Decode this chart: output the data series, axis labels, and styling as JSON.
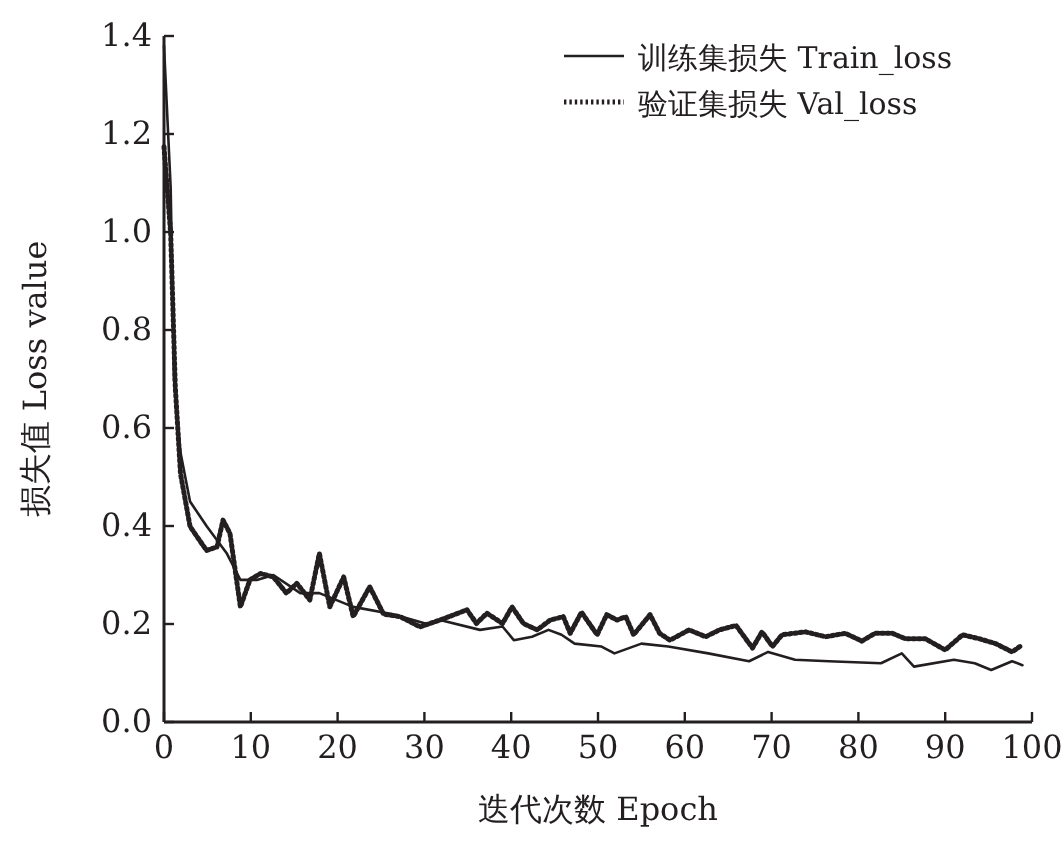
{
  "chart_data": {
    "type": "line",
    "xlabel": "迭代次数 Epoch",
    "ylabel": "损失值 Loss value",
    "xlim": [
      0,
      100
    ],
    "xticks": [
      0,
      10,
      20,
      30,
      40,
      50,
      60,
      70,
      80,
      90,
      100
    ],
    "ylim": [
      0,
      1.4
    ],
    "yticks": [
      {
        "value": 0,
        "label": "0.0"
      },
      0.2,
      0.4,
      0.6,
      0.8,
      {
        "value": 1,
        "label": "1.0"
      },
      1.2,
      1.4
    ],
    "grid": false,
    "legend": "top right",
    "marker": "none",
    "series": [
      {
        "name": "训练集损失 Train_loss",
        "color": "#231f20",
        "line_style": "solid",
        "x": [
          0,
          0.77,
          1.15,
          1.9,
          3,
          4.9,
          7.2,
          8.8,
          10.7,
          12.6,
          15.7,
          17.9,
          21.8,
          26.4,
          30.3,
          31.8,
          36.4,
          39,
          40.3,
          42.4,
          44.3,
          45.8,
          47.3,
          50.4,
          51.9,
          55,
          58.1,
          62.7,
          67.4,
          69.6,
          72.7,
          76.6,
          82.6,
          85,
          86.4,
          91,
          93.4,
          95.3,
          97.7,
          98.9
        ],
        "values": [
          1.38,
          1.09,
          0.7,
          0.55,
          0.45,
          0.4,
          0.345,
          0.29,
          0.29,
          0.3,
          0.263,
          0.263,
          0.235,
          0.22,
          0.2,
          0.208,
          0.188,
          0.195,
          0.167,
          0.174,
          0.188,
          0.178,
          0.16,
          0.154,
          0.14,
          0.16,
          0.154,
          0.14,
          0.124,
          0.143,
          0.127,
          0.124,
          0.12,
          0.14,
          0.113,
          0.127,
          0.12,
          0.106,
          0.124,
          0.116
        ]
      },
      {
        "name": "验证集损失 Val_loss",
        "color": "#231f20",
        "line_style": "dotted",
        "x": [
          0,
          0.77,
          1.3,
          1.9,
          3,
          4.9,
          6.1,
          6.8,
          7.6,
          8.8,
          9.9,
          11.1,
          12.6,
          14.1,
          15.3,
          16.8,
          17.9,
          19.1,
          20.7,
          21.8,
          23.7,
          25.3,
          27.2,
          29.5,
          31.8,
          34.9,
          36,
          37.2,
          39,
          40.1,
          41.4,
          43,
          44.5,
          46,
          46.8,
          48.1,
          49.9,
          51,
          52.2,
          53.2,
          54.1,
          56,
          57.1,
          58.3,
          60.5,
          62.4,
          64,
          65.9,
          67.8,
          68.9,
          70.1,
          71.2,
          73.9,
          76.2,
          78.5,
          80.4,
          81.9,
          83.9,
          85.4,
          87.7,
          90,
          92,
          93.9,
          95.8,
          97.7,
          98.6
        ],
        "values": [
          1.174,
          0.997,
          0.684,
          0.507,
          0.399,
          0.35,
          0.357,
          0.412,
          0.385,
          0.235,
          0.29,
          0.303,
          0.296,
          0.263,
          0.283,
          0.249,
          0.344,
          0.235,
          0.296,
          0.215,
          0.276,
          0.22,
          0.215,
          0.194,
          0.208,
          0.229,
          0.201,
          0.222,
          0.201,
          0.235,
          0.201,
          0.188,
          0.208,
          0.215,
          0.181,
          0.224,
          0.178,
          0.219,
          0.208,
          0.215,
          0.178,
          0.219,
          0.181,
          0.167,
          0.188,
          0.174,
          0.188,
          0.197,
          0.151,
          0.184,
          0.154,
          0.178,
          0.184,
          0.174,
          0.181,
          0.165,
          0.181,
          0.181,
          0.17,
          0.17,
          0.147,
          0.178,
          0.17,
          0.16,
          0.143,
          0.154
        ]
      }
    ]
  }
}
